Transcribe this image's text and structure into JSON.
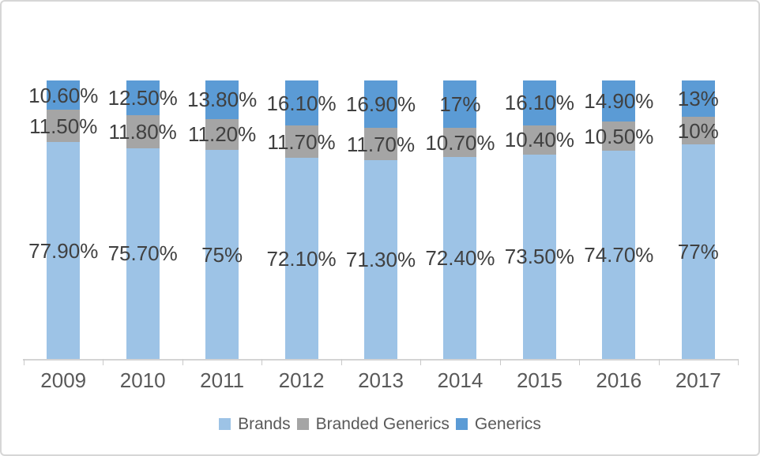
{
  "chart_data": {
    "type": "bar",
    "stacked": true,
    "percent_stacked": true,
    "title": "",
    "xlabel": "",
    "ylabel": "",
    "ylim": [
      0,
      100
    ],
    "grid": false,
    "legend_position": "bottom",
    "categories": [
      "2009",
      "2010",
      "2011",
      "2012",
      "2013",
      "2014",
      "2015",
      "2016",
      "2017"
    ],
    "series": [
      {
        "name": "Brands",
        "color": "#9DC3E6",
        "values": [
          77.9,
          75.7,
          75,
          72.1,
          71.3,
          72.4,
          73.5,
          74.7,
          77
        ],
        "labels": [
          "77.90%",
          "75.70%",
          "75%",
          "72.10%",
          "71.30%",
          "72.40%",
          "73.50%",
          "74.70%",
          "77%"
        ]
      },
      {
        "name": "Branded Generics",
        "color": "#A5A5A5",
        "values": [
          11.5,
          11.8,
          11.2,
          11.7,
          11.7,
          10.7,
          10.4,
          10.5,
          10
        ],
        "labels": [
          "11.50%",
          "11.80%",
          "11.20%",
          "11.70%",
          "11.70%",
          "10.70%",
          "10.40%",
          "10.50%",
          "10%"
        ]
      },
      {
        "name": "Generics",
        "color": "#5B9BD5",
        "values": [
          10.6,
          12.5,
          13.8,
          16.1,
          16.9,
          17,
          16.1,
          14.9,
          13
        ],
        "labels": [
          "10.60%",
          "12.50%",
          "13.80%",
          "16.10%",
          "16.90%",
          "17%",
          "16.10%",
          "14.90%",
          "13%"
        ]
      }
    ],
    "legend": [
      "Brands",
      "Branded Generics",
      "Generics"
    ]
  },
  "style": {
    "data_label_color": "#404040",
    "axis_label_color": "#595959",
    "legend_text_color": "#595959",
    "axis_line_color": "#D4D4D4",
    "background": "#FFFFFF",
    "frame_border_color": "#D6D6D6"
  }
}
